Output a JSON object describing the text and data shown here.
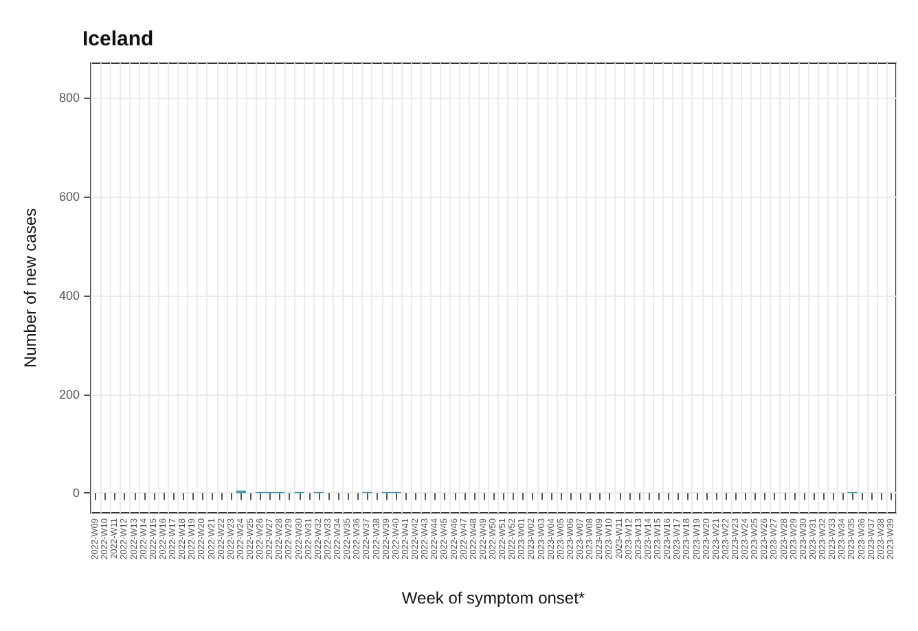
{
  "chart_data": {
    "type": "bar",
    "title": "Iceland",
    "xlabel": "Week of symptom onset*",
    "ylabel": "Number of new cases",
    "categories": [
      "2022-W09",
      "2022-W10",
      "2022-W11",
      "2022-W12",
      "2022-W13",
      "2022-W14",
      "2022-W15",
      "2022-W16",
      "2022-W17",
      "2022-W18",
      "2022-W19",
      "2022-W20",
      "2022-W21",
      "2022-W22",
      "2022-W23",
      "2022-W24",
      "2022-W25",
      "2022-W26",
      "2022-W27",
      "2022-W28",
      "2022-W29",
      "2022-W30",
      "2022-W31",
      "2022-W32",
      "2022-W33",
      "2022-W34",
      "2022-W35",
      "2022-W36",
      "2022-W37",
      "2022-W38",
      "2022-W39",
      "2022-W40",
      "2022-W41",
      "2022-W42",
      "2022-W43",
      "2022-W44",
      "2022-W45",
      "2022-W46",
      "2022-W47",
      "2022-W48",
      "2022-W49",
      "2022-W50",
      "2022-W51",
      "2022-W52",
      "2023-W01",
      "2023-W02",
      "2023-W03",
      "2023-W04",
      "2023-W05",
      "2023-W06",
      "2023-W07",
      "2023-W08",
      "2023-W09",
      "2023-W10",
      "2023-W11",
      "2023-W12",
      "2023-W13",
      "2023-W14",
      "2023-W15",
      "2023-W16",
      "2023-W17",
      "2023-W18",
      "2023-W19",
      "2023-W20",
      "2023-W21",
      "2023-W22",
      "2023-W23",
      "2023-W24",
      "2023-W25",
      "2023-W26",
      "2023-W27",
      "2023-W28",
      "2023-W29",
      "2023-W30",
      "2023-W31",
      "2023-W32",
      "2023-W33",
      "2023-W34",
      "2023-W35",
      "2023-W36",
      "2023-W37",
      "2023-W38",
      "2023-W39"
    ],
    "values": [
      0,
      0,
      0,
      0,
      0,
      0,
      0,
      0,
      0,
      0,
      0,
      0,
      0,
      0,
      0,
      5,
      0,
      2,
      2,
      2,
      0,
      2,
      0,
      2,
      0,
      0,
      0,
      0,
      2,
      0,
      2,
      2,
      0,
      0,
      0,
      0,
      0,
      0,
      0,
      0,
      0,
      0,
      0,
      0,
      0,
      0,
      0,
      0,
      0,
      0,
      0,
      0,
      0,
      0,
      0,
      0,
      0,
      0,
      0,
      0,
      0,
      0,
      0,
      0,
      0,
      0,
      0,
      0,
      0,
      0,
      0,
      0,
      0,
      0,
      0,
      0,
      0,
      0,
      2,
      0,
      0,
      0,
      0
    ],
    "color": "#3a9ab5",
    "ylim": [
      -40,
      870
    ],
    "yticks": [
      0,
      200,
      400,
      600,
      800
    ],
    "grid": true
  }
}
